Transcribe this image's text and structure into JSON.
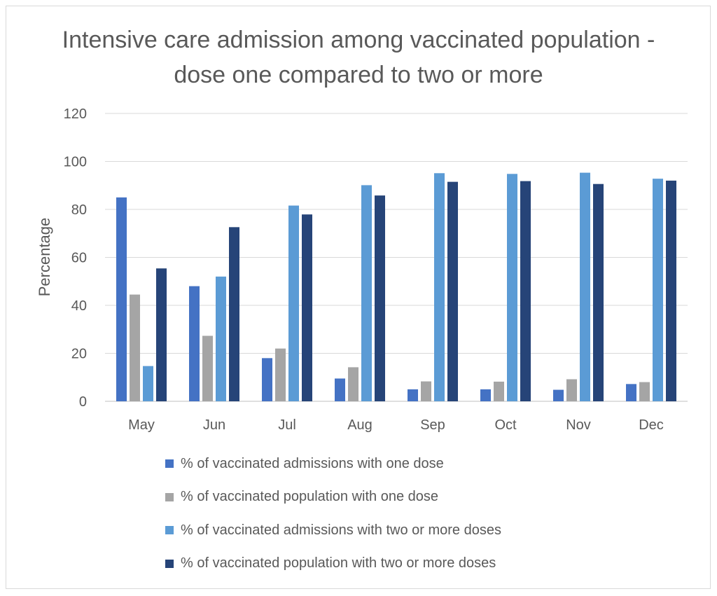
{
  "chart_data": {
    "type": "bar",
    "title": "Intensive care admission among vaccinated population - dose one compared to two or more",
    "ylabel": "Percentage",
    "xlabel": "",
    "ylim": [
      0,
      120
    ],
    "yticks": [
      0,
      20,
      40,
      60,
      80,
      100,
      120
    ],
    "categories": [
      "May",
      "Jun",
      "Jul",
      "Aug",
      "Sep",
      "Oct",
      "Nov",
      "Dec"
    ],
    "grid": true,
    "legend_position": "bottom",
    "series": [
      {
        "name": "% of vaccinated admissions with one dose",
        "color": "#4472c4",
        "values": [
          85,
          48,
          18,
          9.5,
          5,
          5,
          4.8,
          7.2
        ]
      },
      {
        "name": "% of vaccinated population with one dose",
        "color": "#a5a5a5",
        "values": [
          44.5,
          27.3,
          22,
          14.2,
          8.3,
          8.2,
          9.2,
          8
        ]
      },
      {
        "name": "% of vaccinated admissions with two or more doses",
        "color": "#5b9bd5",
        "values": [
          14.7,
          52,
          81.6,
          90.1,
          95.1,
          94.8,
          95.3,
          92.8
        ]
      },
      {
        "name": "% of vaccinated population with two or more doses",
        "color": "#264478",
        "values": [
          55.4,
          72.6,
          77.9,
          85.8,
          91.5,
          91.8,
          90.6,
          92
        ]
      }
    ]
  }
}
